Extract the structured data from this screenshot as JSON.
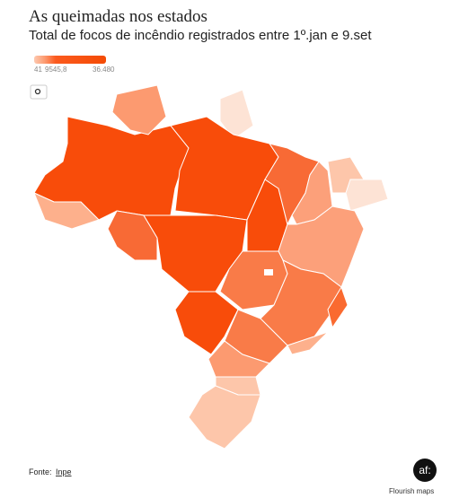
{
  "header": {
    "title": "As queimadas nos estados",
    "subtitle": "Total de focos de incêndio registrados entre 1º.jan e 9.set"
  },
  "legend": {
    "min": {
      "value": 41,
      "label": "41"
    },
    "mid": {
      "value": 9545.8,
      "label": "9545,8"
    },
    "max": {
      "value": 36480,
      "label": "36.480"
    }
  },
  "footer": {
    "source_label": "Fonte:",
    "source": "Inpe",
    "logo": "af:",
    "credit": "Flourish maps"
  }
}
